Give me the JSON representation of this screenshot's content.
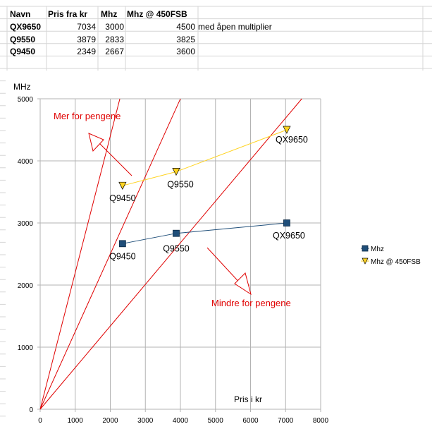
{
  "table": {
    "headers": [
      "Navn",
      "Pris fra kr",
      "Mhz",
      "Mhz @ 450FSB"
    ],
    "rows": [
      {
        "name": "QX9650",
        "price": "7034",
        "mhz": "3000",
        "mhz450": "4500",
        "note": "med åpen multiplier"
      },
      {
        "name": "Q9550",
        "price": "3879",
        "mhz": "2833",
        "mhz450": "3825",
        "note": ""
      },
      {
        "name": "Q9450",
        "price": "2349",
        "mhz": "2667",
        "mhz450": "3600",
        "note": ""
      }
    ]
  },
  "chart_data": {
    "type": "scatter",
    "title": "",
    "xlabel": "Pris i kr",
    "ylabel": "MHz",
    "xlim": [
      0,
      8000
    ],
    "ylim": [
      0,
      5000
    ],
    "xticks": [
      0,
      1000,
      2000,
      3000,
      4000,
      5000,
      6000,
      7000,
      8000
    ],
    "yticks": [
      0,
      1000,
      2000,
      3000,
      4000,
      5000
    ],
    "grid": true,
    "legend_position": "right",
    "series": [
      {
        "name": "Mhz",
        "color": "#1f4e79",
        "marker": "square",
        "x": [
          2349,
          3879,
          7034
        ],
        "y": [
          2667,
          2833,
          3000
        ],
        "labels": [
          "Q9450",
          "Q9550",
          "QX9650"
        ]
      },
      {
        "name": "Mhz @ 450FSB",
        "color": "#ffd320",
        "marker": "triangle-down",
        "x": [
          2349,
          3879,
          7034
        ],
        "y": [
          3600,
          3825,
          4500
        ],
        "labels": [
          "Q9450",
          "Q9550",
          "QX9650"
        ]
      }
    ],
    "reference_lines": [
      {
        "slope": 2.2,
        "color": "#e00000"
      },
      {
        "slope": 1.25,
        "color": "#e00000"
      },
      {
        "slope": 0.67,
        "color": "#e00000"
      }
    ],
    "annotations": [
      {
        "text": "Mer for pengene",
        "color": "#e00000"
      },
      {
        "text": "Mindre for pengene",
        "color": "#e00000"
      }
    ]
  }
}
